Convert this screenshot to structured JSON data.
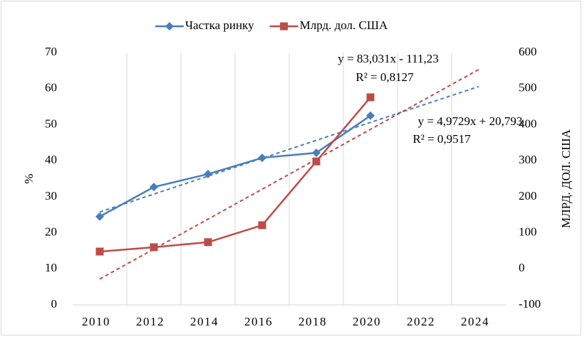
{
  "chart_data": {
    "type": "line",
    "categories": [
      "2010",
      "2012",
      "2014",
      "2016",
      "2018",
      "2020",
      "2022",
      "2024"
    ],
    "series": [
      {
        "name": "Частка ринку",
        "color": "#4a7ebb",
        "marker": "diamond",
        "values": [
          24.5,
          32.7,
          36.3,
          40.8,
          42.2,
          52.5,
          null,
          null
        ]
      },
      {
        "name": "Млрд. дол. США",
        "color": "#be4b48",
        "marker": "square",
        "axis": "y2",
        "values": [
          48,
          60,
          74,
          121,
          298,
          476,
          null,
          null
        ]
      }
    ],
    "trendlines": [
      {
        "series": 0,
        "slope": 4.9729,
        "intercept": 20.793,
        "equation": "y = 4,9729x + 20,793",
        "r2": "R² = 0,9517"
      },
      {
        "series": 1,
        "slope": 83.031,
        "intercept": -111.23,
        "equation": "y = 83,031x - 111,23",
        "r2": "R² = 0,8127"
      }
    ],
    "ylabel": "%",
    "y2label": "МЛРД. ДОЛ. США",
    "ylim": [
      0,
      70
    ],
    "yticks": [
      0,
      10,
      20,
      30,
      40,
      50,
      60,
      70
    ],
    "y2lim": [
      -100,
      600
    ],
    "y2ticks": [
      -100,
      0,
      100,
      200,
      300,
      400,
      500,
      600
    ],
    "grid": "x",
    "legend": "top"
  }
}
